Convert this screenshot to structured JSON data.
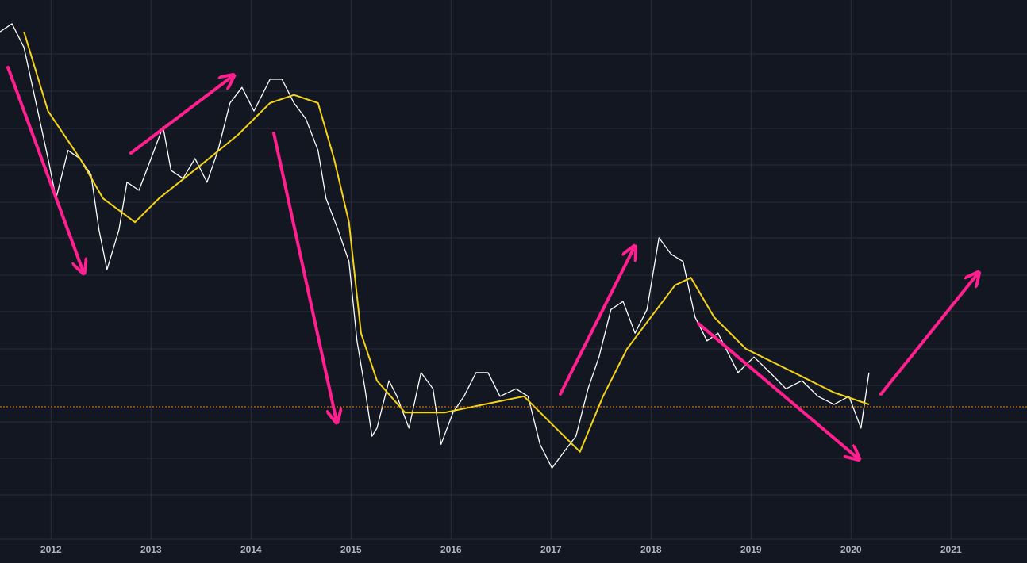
{
  "chart_data": {
    "type": "line",
    "xlim": [
      2011.49,
      2021.76
    ],
    "ylim": [
      0,
      100
    ],
    "xticks": [
      2012,
      2013,
      2014,
      2015,
      2016,
      2017,
      2018,
      2019,
      2020,
      2021
    ],
    "grid": true,
    "series": [
      {
        "color": "#ffffff",
        "x": [
          2011.49,
          2011.61,
          2011.73,
          2011.85,
          2011.97,
          2012.05,
          2012.17,
          2012.29,
          2012.4,
          2012.48,
          2012.56,
          2012.68,
          2012.76,
          2012.88,
          2013.0,
          2013.12,
          2013.2,
          2013.32,
          2013.44,
          2013.56,
          2013.67,
          2013.79,
          2013.91,
          2014.03,
          2014.19,
          2014.31,
          2014.43,
          2014.55,
          2014.67,
          2014.75,
          2014.87,
          2014.98,
          2015.06,
          2015.14,
          2015.21,
          2015.26,
          2015.38,
          2015.46,
          2015.58,
          2015.7,
          2015.82,
          2015.9,
          2016.02,
          2016.13,
          2016.25,
          2016.37,
          2016.49,
          2016.65,
          2016.77,
          2016.89,
          2017.01,
          2017.13,
          2017.25,
          2017.37,
          2017.48,
          2017.6,
          2017.72,
          2017.84,
          2017.96,
          2018.08,
          2018.2,
          2018.32,
          2018.44,
          2018.56,
          2018.67,
          2018.75,
          2018.87,
          2019.03,
          2019.19,
          2019.35,
          2019.51,
          2019.67,
          2019.83,
          2019.98,
          2020.1,
          2020.18
        ],
        "values": [
          94.1,
          95.6,
          91.2,
          80.9,
          70.6,
          63.2,
          72.1,
          70.6,
          67.6,
          57.4,
          50.0,
          57.4,
          66.2,
          64.7,
          70.6,
          76.5,
          68.4,
          66.9,
          70.6,
          66.2,
          72.1,
          80.9,
          83.8,
          79.4,
          85.3,
          85.3,
          80.9,
          77.9,
          72.1,
          63.2,
          57.4,
          51.5,
          36.8,
          27.9,
          19.1,
          20.6,
          29.4,
          26.5,
          20.6,
          30.9,
          27.9,
          17.6,
          23.5,
          26.5,
          30.9,
          30.9,
          26.5,
          27.9,
          26.5,
          17.6,
          13.2,
          16.2,
          19.1,
          27.9,
          33.8,
          42.6,
          44.1,
          38.2,
          42.6,
          55.9,
          52.9,
          51.5,
          41.2,
          36.8,
          38.2,
          35.3,
          30.9,
          33.8,
          30.9,
          27.9,
          29.4,
          26.5,
          25.0,
          26.5,
          20.6,
          30.9
        ]
      },
      {
        "color": "#f5d415",
        "x": [
          2011.73,
          2011.97,
          2012.29,
          2012.52,
          2012.84,
          2013.08,
          2013.48,
          2013.87,
          2014.19,
          2014.43,
          2014.67,
          2014.83,
          2014.98,
          2015.1,
          2015.26,
          2015.54,
          2015.94,
          2016.33,
          2016.73,
          2017.05,
          2017.29,
          2017.52,
          2017.76,
          2018.0,
          2018.24,
          2018.4,
          2018.63,
          2018.95,
          2019.43,
          2019.83,
          2020.18
        ],
        "values": [
          94.1,
          79.4,
          70.6,
          63.2,
          58.8,
          63.2,
          69.1,
          75.0,
          80.9,
          82.4,
          80.9,
          70.6,
          58.8,
          38.2,
          29.4,
          23.5,
          23.5,
          25.0,
          26.5,
          20.6,
          16.2,
          26.5,
          35.3,
          41.2,
          47.1,
          48.5,
          41.2,
          35.3,
          30.9,
          27.2,
          25.0
        ]
      }
    ]
  }
}
